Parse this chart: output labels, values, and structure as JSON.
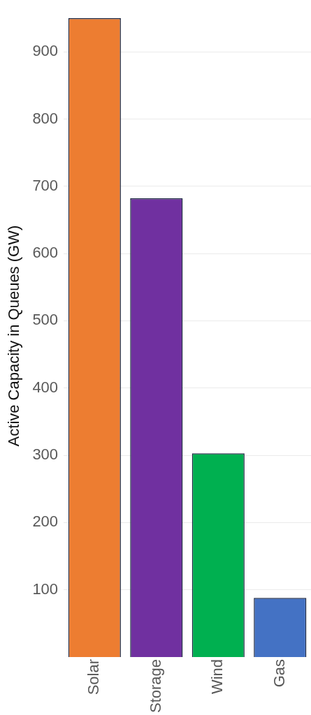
{
  "chart_data": {
    "type": "bar",
    "ylabel": "Active Capacity in Queues (GW)",
    "categories": [
      "Solar",
      "Storage",
      "Wind",
      "Gas"
    ],
    "values": [
      950,
      682,
      303,
      88
    ],
    "colors": [
      "#ed7d31",
      "#7030a0",
      "#00b050",
      "#4472c4"
    ],
    "ylim": [
      0,
      955
    ],
    "yticks": [
      100,
      200,
      300,
      400,
      500,
      600,
      700,
      800,
      900
    ],
    "grid": "y",
    "legend": false
  }
}
